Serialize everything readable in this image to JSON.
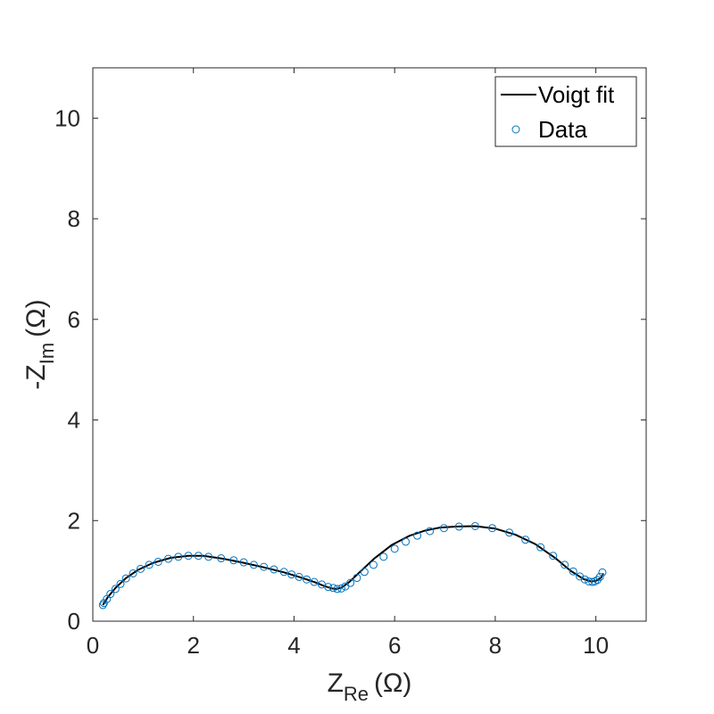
{
  "chart_data": {
    "type": "scatter",
    "xlabel": {
      "main": "Z",
      "sub": "Re",
      "unit": "(Ω)"
    },
    "ylabel": {
      "main": "-Z",
      "sub": "Im",
      "unit": "(Ω)"
    },
    "xlim": [
      0,
      11
    ],
    "ylim": [
      0,
      11
    ],
    "xticks": [
      0,
      2,
      4,
      6,
      8,
      10
    ],
    "yticks": [
      0,
      2,
      4,
      6,
      8,
      10
    ],
    "grid": false,
    "legend": {
      "position": "top-right",
      "entries": [
        "Voigt fit",
        "Data"
      ]
    },
    "colors": {
      "fit": "#000000",
      "data": "#0072BD",
      "axis": "#262626"
    },
    "series": [
      {
        "name": "Voigt fit",
        "style": "line",
        "x": [
          0.2,
          0.3,
          0.45,
          0.65,
          0.9,
          1.2,
          1.55,
          1.9,
          2.2,
          2.6,
          3.0,
          3.4,
          3.8,
          4.1,
          4.4,
          4.6,
          4.75,
          4.85,
          4.95,
          5.1,
          5.3,
          5.6,
          5.95,
          6.3,
          6.6,
          6.9,
          7.2,
          7.6,
          8.0,
          8.4,
          8.8,
          9.2,
          9.5,
          9.75,
          9.9,
          10.0,
          10.1,
          10.15
        ],
        "y": [
          0.32,
          0.48,
          0.66,
          0.85,
          1.02,
          1.16,
          1.26,
          1.3,
          1.3,
          1.24,
          1.16,
          1.07,
          0.97,
          0.88,
          0.78,
          0.7,
          0.65,
          0.64,
          0.67,
          0.78,
          0.97,
          1.25,
          1.52,
          1.7,
          1.8,
          1.86,
          1.88,
          1.89,
          1.84,
          1.72,
          1.53,
          1.25,
          1.0,
          0.84,
          0.79,
          0.8,
          0.86,
          0.95
        ]
      },
      {
        "name": "Data",
        "style": "markers",
        "x": [
          0.2,
          0.22,
          0.28,
          0.35,
          0.45,
          0.55,
          0.66,
          0.8,
          0.95,
          1.12,
          1.3,
          1.5,
          1.7,
          1.9,
          2.1,
          2.3,
          2.55,
          2.8,
          3.0,
          3.2,
          3.4,
          3.6,
          3.8,
          3.95,
          4.1,
          4.25,
          4.4,
          4.55,
          4.68,
          4.78,
          4.86,
          4.94,
          5.02,
          5.12,
          5.25,
          5.4,
          5.58,
          5.78,
          6.0,
          6.22,
          6.45,
          6.7,
          6.98,
          7.28,
          7.6,
          7.94,
          8.28,
          8.6,
          8.9,
          9.15,
          9.38,
          9.55,
          9.68,
          9.78,
          9.86,
          9.93,
          9.98,
          10.03,
          10.08,
          10.13
        ],
        "y": [
          0.32,
          0.36,
          0.44,
          0.54,
          0.64,
          0.74,
          0.85,
          0.95,
          1.04,
          1.12,
          1.18,
          1.24,
          1.28,
          1.3,
          1.3,
          1.28,
          1.25,
          1.21,
          1.17,
          1.12,
          1.08,
          1.03,
          0.98,
          0.93,
          0.88,
          0.83,
          0.78,
          0.73,
          0.68,
          0.66,
          0.64,
          0.65,
          0.69,
          0.76,
          0.86,
          0.98,
          1.12,
          1.28,
          1.44,
          1.58,
          1.7,
          1.79,
          1.85,
          1.88,
          1.89,
          1.85,
          1.76,
          1.62,
          1.47,
          1.3,
          1.12,
          0.99,
          0.89,
          0.83,
          0.79,
          0.78,
          0.79,
          0.82,
          0.88,
          0.97
        ]
      }
    ]
  }
}
